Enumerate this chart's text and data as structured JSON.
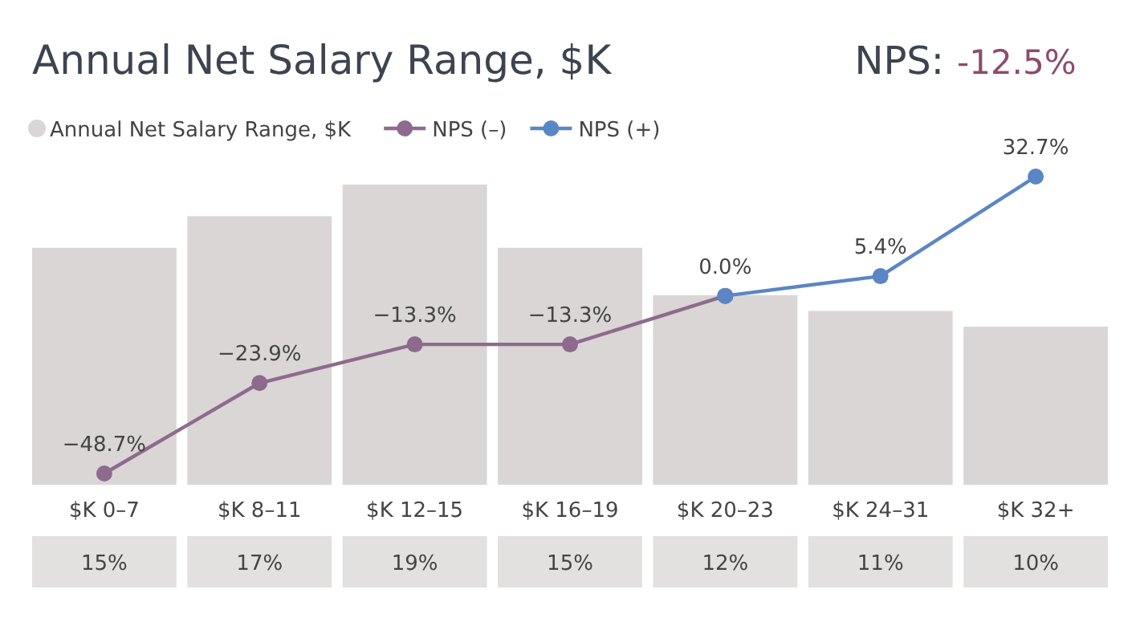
{
  "chart_data": {
    "type": "bar",
    "title": "Annual Net Salary Range, $K",
    "annotations": [
      "NPS:",
      "-12.5%"
    ],
    "categories": [
      "$K 0–7",
      "$K 8–11",
      "$K 12–15",
      "$K 16–19",
      "$K 20–23",
      "$K 24–31",
      "$K 32+"
    ],
    "tick_labels": "x",
    "legend": "top left",
    "marker": "circle",
    "series": [
      {
        "name": "Annual Net Salary Range, $K",
        "color": "#d9d6d5",
        "values": [
          15,
          17,
          19,
          15,
          12,
          11,
          10
        ],
        "value_labels": [
          "15%",
          "17%",
          "19%",
          "15%",
          "12%",
          "11%",
          "10%"
        ]
      },
      {
        "name": "NPS (–)",
        "type": "line",
        "axis": "y2",
        "color": "#8e6a8e",
        "values": [
          -48.7,
          -23.9,
          -13.3,
          -13.3,
          0.0,
          null,
          null
        ],
        "value_labels": [
          "−48.7%",
          "−23.9%",
          "−13.3%",
          "−13.3%",
          "0.0%",
          null,
          null
        ]
      },
      {
        "name": "NPS (+)",
        "type": "line",
        "axis": "y2",
        "color": "#5b86c5",
        "values": [
          null,
          null,
          null,
          null,
          0.0,
          5.4,
          32.7
        ],
        "value_labels": [
          null,
          null,
          null,
          null,
          null,
          "5.4%",
          "32.7%"
        ]
      }
    ]
  }
}
